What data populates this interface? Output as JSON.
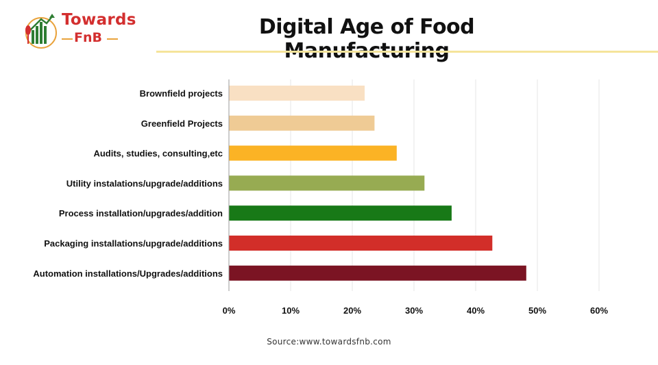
{
  "brand": {
    "line1": "Towards",
    "line2": "FnB"
  },
  "title": "Digital Age of Food Manufacturing",
  "source": "Source:www.towardsfnb.com",
  "chart_data": {
    "type": "bar",
    "orientation": "horizontal",
    "categories": [
      "Brownfield projects",
      "Greenfield Projects",
      "Audits, studies, consulting,etc",
      "Utility instalations/upgrade/additions",
      "Process installation/upgrades/addition",
      "Packaging installations/upgrade/additions",
      "Automation installations/Upgrades/additions"
    ],
    "values": [
      22,
      23.6,
      27.2,
      31.7,
      36.1,
      42.7,
      48.2
    ],
    "colors": [
      "#f9e0c3",
      "#efcb95",
      "#fbb325",
      "#97ab52",
      "#187917",
      "#d22e29",
      "#7b1423"
    ],
    "xlim": [
      0,
      60
    ],
    "xticks": [
      0,
      10,
      20,
      30,
      40,
      50,
      60
    ],
    "xtick_labels": [
      "0%",
      "10%",
      "20%",
      "30%",
      "40%",
      "50%",
      "60%"
    ],
    "grid": "vertical",
    "legend": "none"
  }
}
